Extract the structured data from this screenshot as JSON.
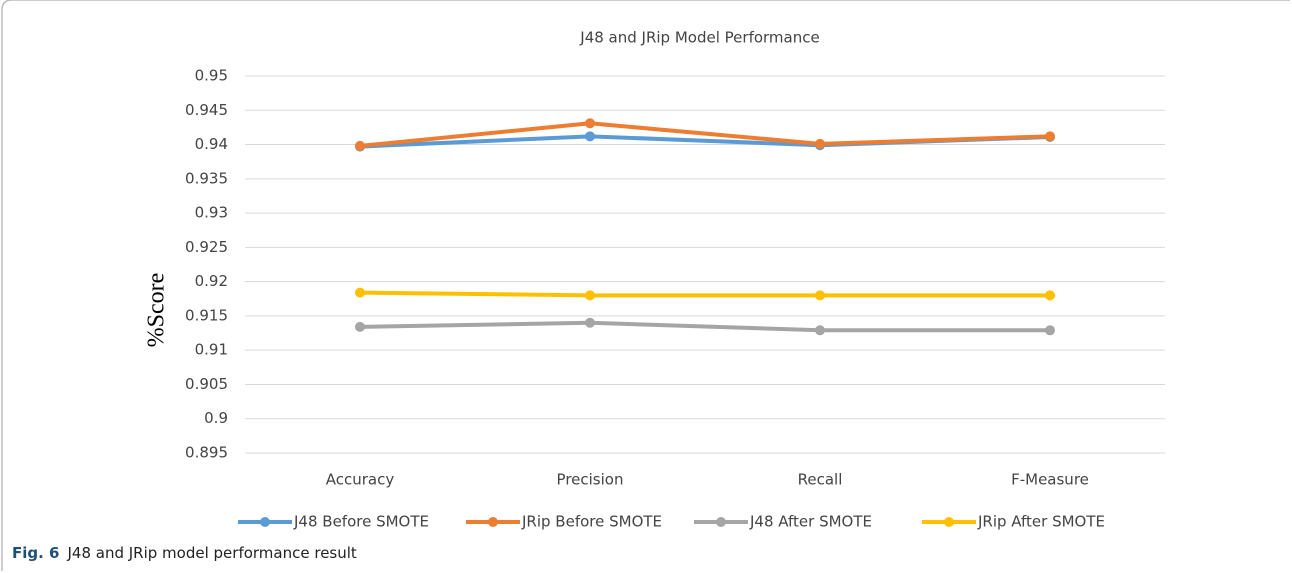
{
  "chart_data": {
    "type": "line",
    "title": "J48 and JRip  Model Performance",
    "y_label": "%Score",
    "categories": [
      "Accuracy",
      "Precision",
      "Recall",
      "F-Measure"
    ],
    "series": [
      {
        "name": "J48 Before SMOTE",
        "color": "#5b9bd5",
        "values": [
          0.9397,
          0.9412,
          0.9399,
          0.9411
        ]
      },
      {
        "name": "JRip Before SMOTE",
        "color": "#ed7d31",
        "values": [
          0.9398,
          0.9431,
          0.9401,
          0.9412
        ]
      },
      {
        "name": "J48 After SMOTE",
        "color": "#a5a5a5",
        "values": [
          0.9134,
          0.914,
          0.9129,
          0.9129
        ]
      },
      {
        "name": "JRip After SMOTE",
        "color": "#ffc000",
        "values": [
          0.9184,
          0.918,
          0.918,
          0.918
        ]
      }
    ],
    "ylim": [
      0.895,
      0.95
    ],
    "yticks": [
      0.895,
      0.9,
      0.905,
      0.91,
      0.915,
      0.92,
      0.925,
      0.93,
      0.935,
      0.94,
      0.945,
      0.95
    ],
    "grid": true,
    "legend": "bottom"
  },
  "caption": {
    "label": "Fig. 6",
    "text": "J48 and JRip model performance result"
  }
}
